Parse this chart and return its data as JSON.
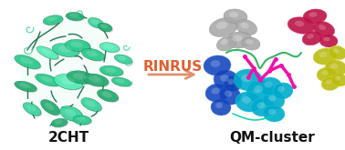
{
  "bg_color": "#ffffff",
  "left_label": "2CHT",
  "right_label": "QM-cluster",
  "arrow_text": "RINRUS",
  "arrow_text_color": "#E06030",
  "arrow_color": "#E09070",
  "label_fontsize": 11,
  "arrow_fontsize": 11,
  "label_color": "#111111",
  "left_protein_colors": {
    "main1": "#3DD6A0",
    "main2": "#2ECC8E",
    "dark": "#0A6640",
    "helix": "#27AE73",
    "sheet": "#55EEB8",
    "light": "#80F0C0"
  },
  "right_cluster_colors": {
    "gray": "#AAAAAA",
    "gray_dark": "#888888",
    "blue": "#1144BB",
    "blue2": "#3366DD",
    "cyan": "#00AACC",
    "cyan2": "#22CCDD",
    "pink": "#EE11AA",
    "red": "#BB1144",
    "red2": "#DD2266",
    "yellow": "#BBBB11",
    "yellow2": "#DDDD33",
    "green": "#22AA55",
    "teal": "#00CCAA"
  }
}
